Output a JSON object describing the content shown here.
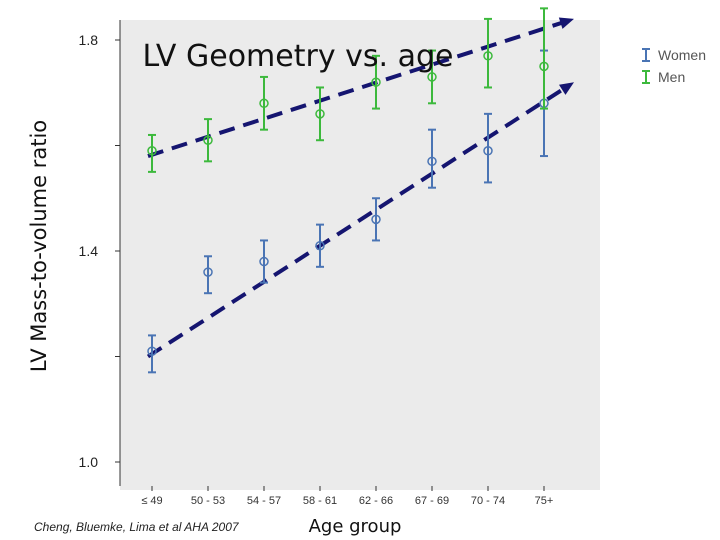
{
  "chart_data": {
    "type": "scatter",
    "title": "LV Geometry vs. age",
    "xlabel": "Age group",
    "ylabel": "LV Mass-to-volume ratio",
    "categories": [
      "≤ 49",
      "50 - 53",
      "54 - 57",
      "58 - 61",
      "62 - 66",
      "67 - 69",
      "70 - 74",
      "75+"
    ],
    "ylim": [
      1.0,
      1.8
    ],
    "yticks": [
      1.0,
      1.4,
      1.8
    ],
    "yticks_labeled": [
      "1.0",
      "1.4",
      "1.8"
    ],
    "yticks_minor": [
      1.2,
      1.6
    ],
    "grid": false,
    "legend_position": "top-right, outside plot",
    "series": [
      {
        "name": "Women",
        "color": "#4a74b4",
        "values": [
          1.21,
          1.36,
          1.38,
          1.41,
          1.46,
          1.57,
          1.59,
          1.68
        ],
        "lower": [
          1.17,
          1.32,
          1.34,
          1.37,
          1.42,
          1.52,
          1.53,
          1.58
        ],
        "upper": [
          1.24,
          1.39,
          1.42,
          1.45,
          1.5,
          1.63,
          1.66,
          1.78
        ],
        "trend": {
          "from": [
            0,
            1.2
          ],
          "to": [
            7,
            1.72
          ]
        }
      },
      {
        "name": "Men",
        "color": "#3cb93c",
        "values": [
          1.59,
          1.61,
          1.68,
          1.66,
          1.72,
          1.73,
          1.77,
          1.75
        ],
        "lower": [
          1.55,
          1.57,
          1.63,
          1.61,
          1.67,
          1.68,
          1.71,
          1.67
        ],
        "upper": [
          1.62,
          1.65,
          1.73,
          1.71,
          1.77,
          1.78,
          1.84,
          1.86
        ],
        "trend": {
          "from": [
            0,
            1.58
          ],
          "to": [
            7,
            1.84
          ]
        }
      }
    ]
  },
  "legend": [
    {
      "label": "Women",
      "color": "#4a74b4"
    },
    {
      "label": "Men",
      "color": "#3cb93c"
    }
  ],
  "citation": "Cheng, Bluemke, Lima et al AHA 2007",
  "trend_line_color": "#151570"
}
